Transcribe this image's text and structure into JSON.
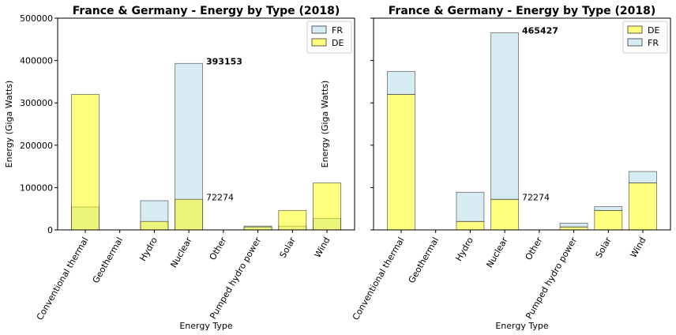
{
  "chart_data": [
    {
      "type": "bar",
      "stacked": false,
      "title": "France & Germany - Energy by Type (2018)",
      "x_label": "Energy Type",
      "y_label": "Energy (Giga Watts)",
      "categories": [
        "Conventional thermal",
        "Geothermal",
        "Hydro",
        "Nuclear",
        "Other",
        "Pumped hydro power",
        "Solar",
        "Wind"
      ],
      "series": [
        {
          "name": "FR",
          "color": "#add8e6",
          "values": [
            54000,
            0,
            69000,
            393153,
            0,
            9000,
            9000,
            27000
          ]
        },
        {
          "name": "DE",
          "color": "#ffff00",
          "values": [
            320000,
            0,
            20000,
            72274,
            0,
            7000,
            46000,
            111000
          ]
        }
      ],
      "ylim": [
        0,
        500000
      ],
      "yticks": [
        0,
        100000,
        200000,
        300000,
        400000,
        500000
      ],
      "show_ytick_labels": true,
      "legend": "upper-right",
      "annotations": [
        {
          "text": "393153",
          "category": "Nuclear",
          "y": 393153,
          "color": "#ff0000",
          "bold": true
        },
        {
          "text": "72274",
          "category": "Nuclear",
          "y": 72274,
          "color": "#808080",
          "bold": false
        }
      ]
    },
    {
      "type": "bar",
      "stacked": true,
      "title": "France & Germany - Energy by Type (2018)",
      "x_label": "Energy Type",
      "y_label": "Energy (Giga Watts)",
      "categories": [
        "Conventional thermal",
        "Geothermal",
        "Hydro",
        "Nuclear",
        "Other",
        "Pumped hydro power",
        "Solar",
        "Wind"
      ],
      "series": [
        {
          "name": "DE",
          "color": "#ffff00",
          "values": [
            320000,
            0,
            20000,
            72274,
            0,
            7000,
            46000,
            111000
          ]
        },
        {
          "name": "FR",
          "color": "#add8e6",
          "values": [
            54000,
            0,
            69000,
            393153,
            0,
            9000,
            9000,
            27000
          ]
        }
      ],
      "ylim": [
        0,
        500000
      ],
      "yticks": [
        0,
        100000,
        200000,
        300000,
        400000,
        500000
      ],
      "show_ytick_labels": false,
      "legend": "upper-right",
      "annotations": [
        {
          "text": "465427",
          "category": "Nuclear",
          "y": 465427,
          "color": "#ff0000",
          "bold": true
        },
        {
          "text": "72274",
          "category": "Nuclear",
          "y": 72274,
          "color": "#808080",
          "bold": false
        }
      ]
    }
  ]
}
